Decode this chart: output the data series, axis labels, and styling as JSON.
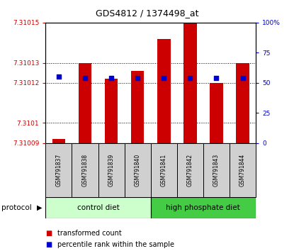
{
  "title": "GDS4812 / 1374498_at",
  "samples": [
    "GSM791837",
    "GSM791838",
    "GSM791839",
    "GSM791840",
    "GSM791841",
    "GSM791842",
    "GSM791843",
    "GSM791844"
  ],
  "transformed_count": [
    7.310092,
    7.31013,
    7.310122,
    7.310126,
    7.310142,
    7.31015,
    7.31012,
    7.31013
  ],
  "percentile_rank": [
    55,
    54,
    54,
    54,
    54,
    54,
    54,
    54
  ],
  "ylim_left": [
    7.31009,
    7.31015
  ],
  "ylim_right": [
    0,
    100
  ],
  "yticks_left": [
    7.31009,
    7.3101,
    7.31012,
    7.31013,
    7.31015
  ],
  "yticks_right": [
    0,
    25,
    50,
    75,
    100
  ],
  "ytick_labels_left": [
    "7.31009",
    "7.3101",
    "7.31012",
    "7.31013",
    "7.31015"
  ],
  "ytick_labels_right": [
    "0",
    "25",
    "50",
    "75",
    "100%"
  ],
  "bar_color": "#cc0000",
  "dot_color": "#0000cc",
  "ctrl_color": "#ccffcc",
  "hp_color": "#44cc44",
  "bar_width": 0.5,
  "baseline": 7.31009,
  "legend_items": [
    {
      "color": "#cc0000",
      "label": "transformed count"
    },
    {
      "color": "#0000cc",
      "label": "percentile rank within the sample"
    }
  ]
}
